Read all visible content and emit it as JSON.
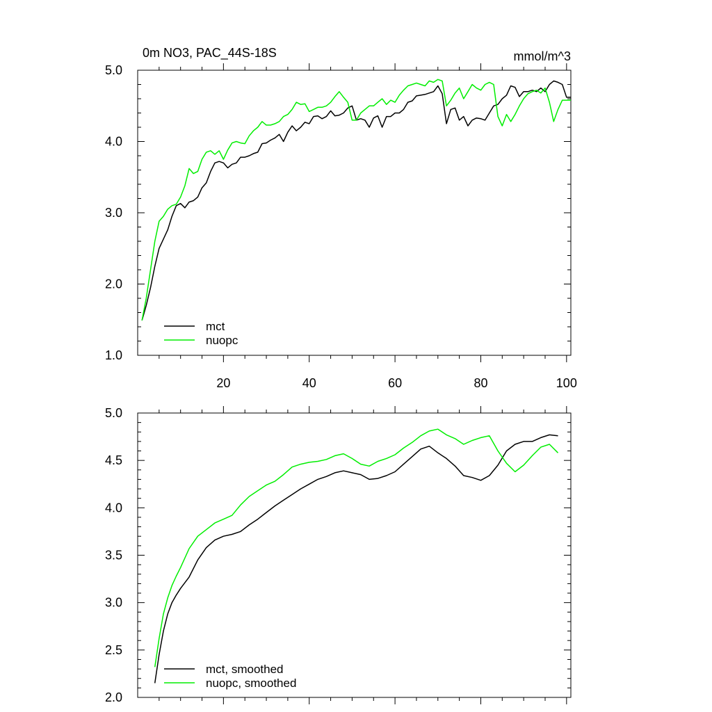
{
  "chart_data": [
    {
      "type": "line",
      "title": "0m NO3, PAC_44S-18S",
      "units": "mmol/m^3",
      "xlim": [
        0,
        101
      ],
      "ylim": [
        1.0,
        5.0
      ],
      "xticks": [
        20,
        40,
        60,
        80,
        100
      ],
      "xtick_labels": [
        "20",
        "40",
        "60",
        "80",
        "100"
      ],
      "yticks": [
        1.0,
        2.0,
        3.0,
        4.0,
        5.0
      ],
      "ytick_labels": [
        "1.0",
        "2.0",
        "3.0",
        "4.0",
        "5.0"
      ],
      "grid": false,
      "legend_position": "bottom-left",
      "series": [
        {
          "name": "mct",
          "color": "#000000",
          "x": [
            1,
            2,
            3,
            4,
            5,
            6,
            7,
            8,
            9,
            10,
            11,
            12,
            13,
            14,
            15,
            16,
            17,
            18,
            19,
            20,
            21,
            22,
            23,
            24,
            25,
            26,
            27,
            28,
            29,
            30,
            31,
            32,
            33,
            34,
            35,
            36,
            37,
            38,
            39,
            40,
            41,
            42,
            43,
            44,
            45,
            46,
            47,
            48,
            49,
            50,
            51,
            52,
            53,
            54,
            55,
            56,
            57,
            58,
            59,
            60,
            61,
            62,
            63,
            64,
            65,
            66,
            67,
            68,
            69,
            70,
            71,
            72,
            73,
            74,
            75,
            76,
            77,
            78,
            79,
            80,
            81,
            82,
            83,
            84,
            85,
            86,
            87,
            88,
            89,
            90,
            91,
            92,
            93,
            94,
            95,
            96,
            97,
            98,
            99,
            100,
            101
          ],
          "values": [
            1.49,
            1.7,
            1.95,
            2.25,
            2.5,
            2.63,
            2.76,
            2.95,
            3.1,
            3.13,
            3.07,
            3.15,
            3.17,
            3.22,
            3.35,
            3.42,
            3.58,
            3.7,
            3.72,
            3.7,
            3.63,
            3.68,
            3.7,
            3.78,
            3.78,
            3.8,
            3.83,
            3.85,
            3.97,
            3.98,
            4.02,
            4.05,
            4.1,
            4.0,
            4.13,
            4.22,
            4.15,
            4.2,
            4.27,
            4.25,
            4.35,
            4.36,
            4.32,
            4.35,
            4.43,
            4.36,
            4.37,
            4.4,
            4.47,
            4.5,
            4.3,
            4.32,
            4.3,
            4.2,
            4.33,
            4.36,
            4.2,
            4.35,
            4.35,
            4.4,
            4.4,
            4.45,
            4.55,
            4.57,
            4.64,
            4.65,
            4.66,
            4.68,
            4.7,
            4.78,
            4.67,
            4.25,
            4.45,
            4.47,
            4.3,
            4.35,
            4.22,
            4.3,
            4.33,
            4.32,
            4.3,
            4.4,
            4.5,
            4.52,
            4.6,
            4.65,
            4.78,
            4.76,
            4.63,
            4.7,
            4.7,
            4.72,
            4.7,
            4.75,
            4.7,
            4.8,
            4.85,
            4.83,
            4.8,
            4.62,
            4.62
          ]
        },
        {
          "name": "nuopc",
          "color": "#00ee00",
          "x": [
            1,
            2,
            3,
            4,
            5,
            6,
            7,
            8,
            9,
            10,
            11,
            12,
            13,
            14,
            15,
            16,
            17,
            18,
            19,
            20,
            21,
            22,
            23,
            24,
            25,
            26,
            27,
            28,
            29,
            30,
            31,
            32,
            33,
            34,
            35,
            36,
            37,
            38,
            39,
            40,
            41,
            42,
            43,
            44,
            45,
            46,
            47,
            48,
            49,
            50,
            51,
            52,
            53,
            54,
            55,
            56,
            57,
            58,
            59,
            60,
            61,
            62,
            63,
            64,
            65,
            66,
            67,
            68,
            69,
            70,
            71,
            72,
            73,
            74,
            75,
            76,
            77,
            78,
            79,
            80,
            81,
            82,
            83,
            84,
            85,
            86,
            87,
            88,
            89,
            90,
            91,
            92,
            93,
            94,
            95,
            96,
            97,
            98,
            99,
            100,
            101
          ],
          "values": [
            1.49,
            1.8,
            2.2,
            2.6,
            2.88,
            2.95,
            3.05,
            3.1,
            3.12,
            3.22,
            3.38,
            3.62,
            3.55,
            3.58,
            3.75,
            3.85,
            3.87,
            3.82,
            3.87,
            3.75,
            3.88,
            3.98,
            4.0,
            3.98,
            3.97,
            4.08,
            4.15,
            4.2,
            4.28,
            4.23,
            4.23,
            4.25,
            4.28,
            4.35,
            4.38,
            4.45,
            4.55,
            4.52,
            4.53,
            4.42,
            4.45,
            4.48,
            4.48,
            4.5,
            4.55,
            4.63,
            4.7,
            4.62,
            4.55,
            4.3,
            4.3,
            4.4,
            4.45,
            4.5,
            4.5,
            4.55,
            4.6,
            4.52,
            4.58,
            4.55,
            4.65,
            4.72,
            4.78,
            4.8,
            4.82,
            4.8,
            4.78,
            4.85,
            4.83,
            4.87,
            4.85,
            4.5,
            4.58,
            4.68,
            4.75,
            4.6,
            4.7,
            4.8,
            4.75,
            4.72,
            4.8,
            4.83,
            4.8,
            4.35,
            4.22,
            4.38,
            4.28,
            4.38,
            4.5,
            4.6,
            4.67,
            4.7,
            4.72,
            4.68,
            4.75,
            4.55,
            4.28,
            4.45,
            4.58,
            4.58,
            4.58
          ]
        }
      ]
    },
    {
      "type": "line",
      "title": "",
      "xlim": [
        0,
        101
      ],
      "ylim": [
        2.0,
        5.0
      ],
      "xticks": [
        20,
        40,
        60,
        80,
        100
      ],
      "xtick_labels": [],
      "yticks": [
        2.0,
        2.5,
        3.0,
        3.5,
        4.0,
        4.5,
        5.0
      ],
      "ytick_labels": [
        "2.0",
        "2.5",
        "3.0",
        "3.5",
        "4.0",
        "4.5",
        "5.0"
      ],
      "grid": false,
      "legend_position": "bottom-left",
      "series": [
        {
          "name": "mct, smoothed",
          "color": "#000000",
          "x": [
            4,
            5,
            6,
            7,
            8,
            9,
            10,
            12,
            14,
            16,
            18,
            20,
            22,
            24,
            26,
            28,
            30,
            32,
            34,
            36,
            38,
            40,
            42,
            44,
            46,
            48,
            50,
            52,
            54,
            56,
            58,
            60,
            62,
            64,
            66,
            68,
            70,
            72,
            74,
            76,
            78,
            80,
            82,
            84,
            86,
            88,
            90,
            92,
            94,
            96,
            98
          ],
          "values": [
            2.15,
            2.45,
            2.7,
            2.88,
            3.0,
            3.08,
            3.15,
            3.27,
            3.45,
            3.58,
            3.66,
            3.7,
            3.72,
            3.75,
            3.82,
            3.88,
            3.95,
            4.02,
            4.08,
            4.14,
            4.2,
            4.25,
            4.3,
            4.33,
            4.37,
            4.39,
            4.37,
            4.35,
            4.3,
            4.31,
            4.34,
            4.38,
            4.46,
            4.54,
            4.62,
            4.65,
            4.58,
            4.52,
            4.44,
            4.34,
            4.32,
            4.29,
            4.34,
            4.45,
            4.6,
            4.67,
            4.7,
            4.7,
            4.74,
            4.77,
            4.76
          ]
        },
        {
          "name": "nuopc, smoothed",
          "color": "#00ee00",
          "x": [
            4,
            5,
            6,
            7,
            8,
            9,
            10,
            12,
            14,
            16,
            18,
            20,
            22,
            24,
            26,
            28,
            30,
            32,
            34,
            36,
            38,
            40,
            42,
            44,
            46,
            48,
            50,
            52,
            54,
            56,
            58,
            60,
            62,
            64,
            66,
            68,
            70,
            72,
            74,
            76,
            78,
            80,
            82,
            84,
            86,
            88,
            90,
            92,
            94,
            96,
            98
          ],
          "values": [
            2.32,
            2.62,
            2.88,
            3.05,
            3.18,
            3.28,
            3.37,
            3.57,
            3.7,
            3.77,
            3.84,
            3.88,
            3.92,
            4.03,
            4.12,
            4.18,
            4.24,
            4.28,
            4.35,
            4.43,
            4.46,
            4.48,
            4.49,
            4.51,
            4.55,
            4.57,
            4.52,
            4.46,
            4.44,
            4.49,
            4.52,
            4.56,
            4.63,
            4.69,
            4.76,
            4.81,
            4.83,
            4.77,
            4.73,
            4.67,
            4.71,
            4.74,
            4.76,
            4.6,
            4.47,
            4.38,
            4.45,
            4.55,
            4.64,
            4.67,
            4.58
          ]
        }
      ]
    }
  ]
}
